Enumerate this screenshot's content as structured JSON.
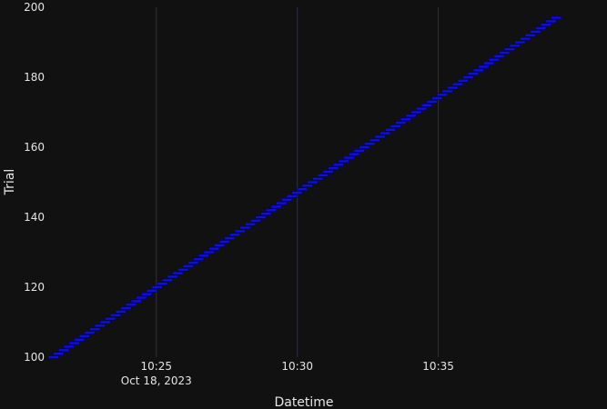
{
  "chart_data": {
    "type": "timeline",
    "xlabel": "Datetime",
    "ylabel": "Trial",
    "xlim": [
      "2023-10-18 10:21:10",
      "2023-10-18 10:39:28"
    ],
    "ylim": [
      100,
      200
    ],
    "x_ticks": [
      {
        "time": "2023-10-18 10:25:00",
        "label": "10:25",
        "sublabel": "Oct 18, 2023"
      },
      {
        "time": "2023-10-18 10:30:00",
        "label": "10:30",
        "sublabel": ""
      },
      {
        "time": "2023-10-18 10:35:00",
        "label": "10:35",
        "sublabel": ""
      }
    ],
    "y_ticks": [
      100,
      120,
      140,
      160,
      180,
      200
    ],
    "grid": {
      "x": true,
      "y": false
    },
    "series": [
      {
        "color": "#1010d0",
        "trials_first": 100,
        "trials_last": 197,
        "first_trial_start": "2023-10-18 10:21:10",
        "last_trial_start": "2023-10-18 10:39:00",
        "trial_duration_seconds": 22
      }
    ]
  }
}
